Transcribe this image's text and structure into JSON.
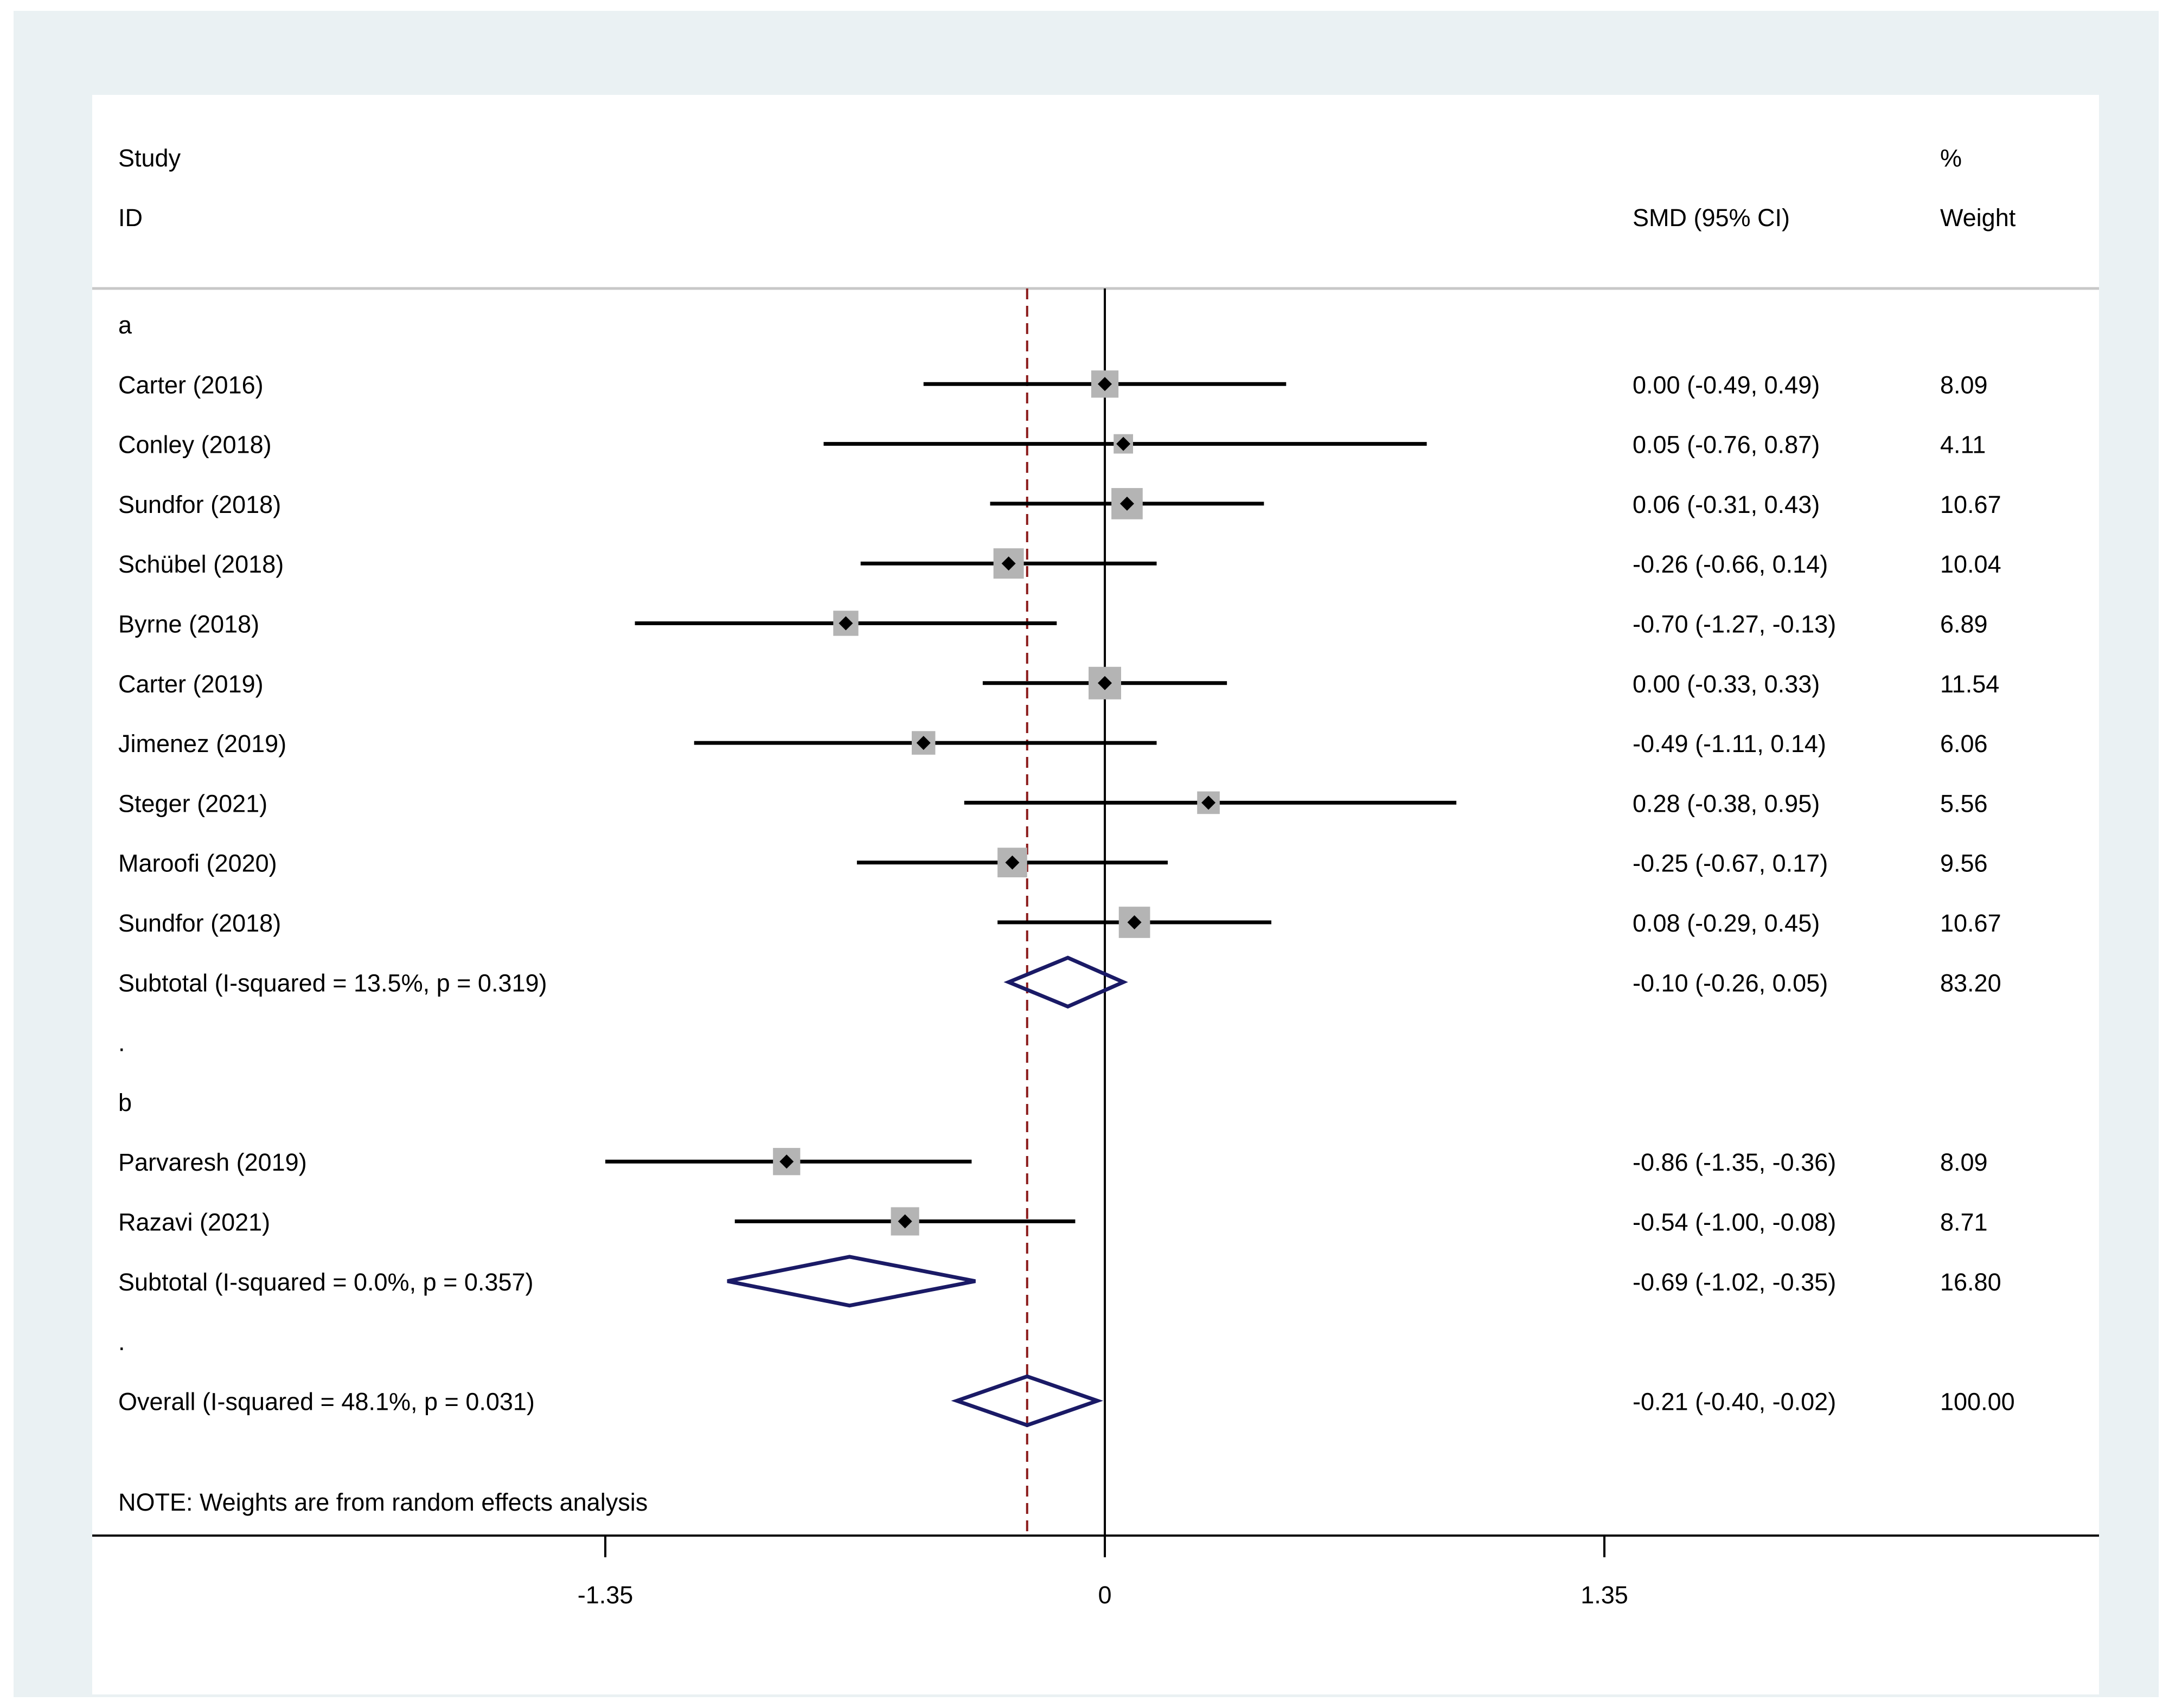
{
  "chart_data": {
    "type": "forest",
    "effect_measure": "SMD",
    "header": {
      "study_label_line1": "Study",
      "study_label_line2": "ID",
      "effect_label": "SMD (95% CI)",
      "weight_label_line1": "%",
      "weight_label_line2": "Weight"
    },
    "x_axis": {
      "ticks": [
        {
          "value": -1.35,
          "label": "-1.35"
        },
        {
          "value": 0,
          "label": "0"
        },
        {
          "value": 1.35,
          "label": "1.35"
        }
      ],
      "xlim": [
        -2.74,
        2.69
      ]
    },
    "null_line": 0,
    "overall_line": -0.21,
    "rows": [
      {
        "kind": "group",
        "label": "a"
      },
      {
        "kind": "study",
        "label": "Carter  (2016)",
        "est": 0.0,
        "lo": -0.49,
        "hi": 0.49,
        "ci_text": "0.00 (-0.49, 0.49)",
        "weight": "8.09"
      },
      {
        "kind": "study",
        "label": "Conley  (2018)",
        "est": 0.05,
        "lo": -0.76,
        "hi": 0.87,
        "ci_text": "0.05 (-0.76, 0.87)",
        "weight": "4.11"
      },
      {
        "kind": "study",
        "label": "Sundfor  (2018)",
        "est": 0.06,
        "lo": -0.31,
        "hi": 0.43,
        "ci_text": "0.06 (-0.31, 0.43)",
        "weight": "10.67"
      },
      {
        "kind": "study",
        "label": "Schübel  (2018)",
        "est": -0.26,
        "lo": -0.66,
        "hi": 0.14,
        "ci_text": "-0.26 (-0.66, 0.14)",
        "weight": "10.04"
      },
      {
        "kind": "study",
        "label": "Byrne  (2018)",
        "est": -0.7,
        "lo": -1.27,
        "hi": -0.13,
        "ci_text": "-0.70 (-1.27, -0.13)",
        "weight": "6.89"
      },
      {
        "kind": "study",
        "label": "Carter  (2019)",
        "est": 0.0,
        "lo": -0.33,
        "hi": 0.33,
        "ci_text": "0.00 (-0.33, 0.33)",
        "weight": "11.54"
      },
      {
        "kind": "study",
        "label": "Jimenez  (2019)",
        "est": -0.49,
        "lo": -1.11,
        "hi": 0.14,
        "ci_text": "-0.49 (-1.11, 0.14)",
        "weight": "6.06"
      },
      {
        "kind": "study",
        "label": "Steger  (2021)",
        "est": 0.28,
        "lo": -0.38,
        "hi": 0.95,
        "ci_text": "0.28 (-0.38, 0.95)",
        "weight": "5.56"
      },
      {
        "kind": "study",
        "label": "Maroofi (2020)",
        "est": -0.25,
        "lo": -0.67,
        "hi": 0.17,
        "ci_text": "-0.25 (-0.67, 0.17)",
        "weight": "9.56"
      },
      {
        "kind": "study",
        "label": "Sundfor  (2018)",
        "est": 0.08,
        "lo": -0.29,
        "hi": 0.45,
        "ci_text": "0.08 (-0.29, 0.45)",
        "weight": "10.67"
      },
      {
        "kind": "subtotal",
        "label": "Subtotal  (I-squared = 13.5%, p = 0.319)",
        "est": -0.1,
        "lo": -0.26,
        "hi": 0.05,
        "ci_text": "-0.10 (-0.26, 0.05)",
        "weight": "83.20"
      },
      {
        "kind": "spacer",
        "label": "."
      },
      {
        "kind": "group",
        "label": "b"
      },
      {
        "kind": "study",
        "label": "Parvaresh  (2019)",
        "est": -0.86,
        "lo": -1.35,
        "hi": -0.36,
        "ci_text": "-0.86 (-1.35, -0.36)",
        "weight": "8.09"
      },
      {
        "kind": "study",
        "label": "Razavi  (2021)",
        "est": -0.54,
        "lo": -1.0,
        "hi": -0.08,
        "ci_text": "-0.54 (-1.00, -0.08)",
        "weight": "8.71"
      },
      {
        "kind": "subtotal",
        "label": "Subtotal  (I-squared = 0.0%, p = 0.357)",
        "est": -0.69,
        "lo": -1.02,
        "hi": -0.35,
        "ci_text": "-0.69 (-1.02, -0.35)",
        "weight": "16.80"
      },
      {
        "kind": "spacer",
        "label": "."
      },
      {
        "kind": "overall",
        "label": "Overall  (I-squared = 48.1%, p = 0.031)",
        "est": -0.21,
        "lo": -0.4,
        "hi": -0.02,
        "ci_text": "-0.21 (-0.40, -0.02)",
        "weight": "100.00"
      }
    ],
    "note": "NOTE: Weights are from random effects analysis"
  }
}
